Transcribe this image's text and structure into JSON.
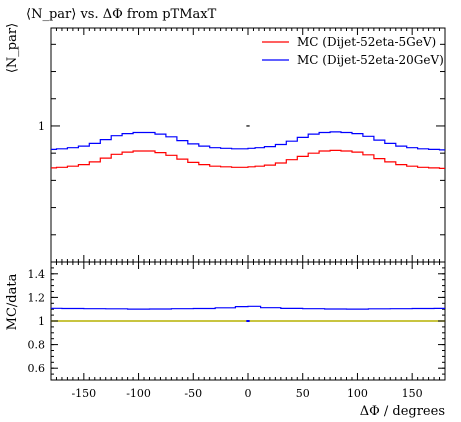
{
  "chart_data": [
    {
      "type": "line",
      "title": "⟨N_par⟩ vs. ΔΦ from pTMaxT",
      "ylabel": "⟨N_par⟩",
      "xlabel": "",
      "xlim": [
        -180,
        180
      ],
      "ylim": [
        0.75,
        1.18
      ],
      "y_ticks": [
        "1"
      ],
      "grid": false,
      "legend_position": "top-right",
      "x": [
        -180,
        -170,
        -160,
        -150,
        -140,
        -130,
        -120,
        -110,
        -100,
        -90,
        -80,
        -70,
        -60,
        -50,
        -40,
        -30,
        -20,
        -10,
        -3,
        3,
        10,
        20,
        30,
        40,
        50,
        60,
        70,
        80,
        90,
        100,
        110,
        120,
        130,
        140,
        150,
        160,
        170,
        180
      ],
      "series": [
        {
          "name": "MC (Dijet-52eta-5GeV)",
          "color": "#ff0000",
          "values": [
            0.923,
            0.924,
            0.926,
            0.929,
            0.934,
            0.941,
            0.948,
            0.952,
            0.954,
            0.954,
            0.951,
            0.946,
            0.939,
            0.933,
            0.929,
            0.926,
            0.925,
            0.924,
            0.924,
            0.925,
            0.926,
            0.928,
            0.932,
            0.938,
            0.944,
            0.95,
            0.954,
            0.955,
            0.954,
            0.952,
            0.947,
            0.94,
            0.934,
            0.929,
            0.926,
            0.924,
            0.923,
            0.922
          ]
        },
        {
          "name": "MC (Dijet-52eta-20GeV)",
          "color": "#0000ff",
          "values": [
            0.957,
            0.958,
            0.96,
            0.963,
            0.968,
            0.975,
            0.982,
            0.986,
            0.988,
            0.988,
            0.985,
            0.98,
            0.973,
            0.967,
            0.963,
            0.96,
            0.959,
            0.958,
            0.958,
            0.959,
            0.96,
            0.962,
            0.966,
            0.972,
            0.979,
            0.985,
            0.988,
            0.989,
            0.988,
            0.986,
            0.981,
            0.974,
            0.968,
            0.963,
            0.96,
            0.958,
            0.957,
            0.956
          ]
        }
      ]
    },
    {
      "type": "line",
      "ylabel": "MC/data",
      "xlabel": "ΔΦ / degrees",
      "xlim": [
        -180,
        180
      ],
      "ylim": [
        0.5,
        1.5
      ],
      "x_ticks": [
        "-150",
        "-100",
        "-50",
        "0",
        "50",
        "100",
        "150"
      ],
      "y_ticks": [
        "0.6",
        "0.8",
        "1",
        "1.2",
        "1.4"
      ],
      "grid": false,
      "reference_line": {
        "value": 1.0,
        "color": "#b5b000"
      },
      "x": [
        -180,
        -160,
        -140,
        -120,
        -100,
        -80,
        -60,
        -40,
        -20,
        -3,
        3,
        20,
        40,
        60,
        80,
        100,
        120,
        140,
        160,
        180
      ],
      "series": [
        {
          "name": "MC (Dijet-52eta-20GeV)",
          "color": "#0000ff",
          "values": [
            1.108,
            1.106,
            1.104,
            1.103,
            1.101,
            1.102,
            1.104,
            1.106,
            1.112,
            1.122,
            1.125,
            1.113,
            1.107,
            1.104,
            1.102,
            1.101,
            1.103,
            1.104,
            1.106,
            1.107
          ]
        }
      ]
    }
  ]
}
